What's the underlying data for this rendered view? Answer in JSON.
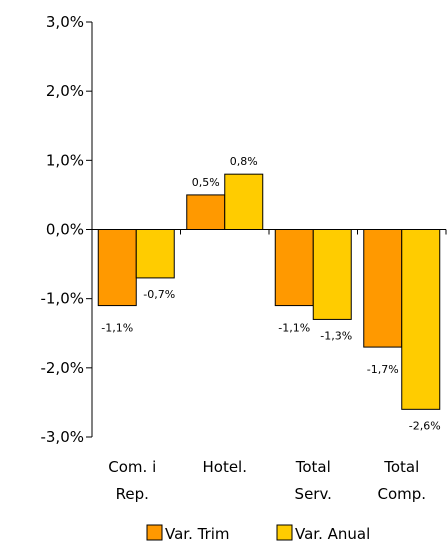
{
  "chart_data": {
    "type": "bar",
    "categories": [
      [
        "Com. i",
        "Rep."
      ],
      [
        "Hotel."
      ],
      [
        "Total",
        "Serv."
      ],
      [
        "Total",
        "Comp."
      ]
    ],
    "series": [
      {
        "name": "Var. Trim",
        "values": [
          -1.1,
          0.5,
          -1.1,
          -1.7
        ],
        "labels": [
          "-1,1%",
          "0,5%",
          "-1,1%",
          "-1,7%"
        ],
        "color": "#FF9900"
      },
      {
        "name": "Var. Anual",
        "values": [
          -0.7,
          0.8,
          -1.3,
          -2.6
        ],
        "labels": [
          "-0,7%",
          "0,8%",
          "-1,3%",
          "-2,6%"
        ],
        "color": "#FFCC00"
      }
    ],
    "ylim": [
      -3.0,
      3.0
    ],
    "yticks": [
      3.0,
      2.0,
      1.0,
      0.0,
      -1.0,
      -2.0,
      -3.0
    ],
    "ytick_labels": [
      "3,0%",
      "2,0%",
      "1,0%",
      "0,0%",
      "-1,0%",
      "-2,0%",
      "-3,0%"
    ],
    "grid": false,
    "legend_position": "bottom"
  }
}
